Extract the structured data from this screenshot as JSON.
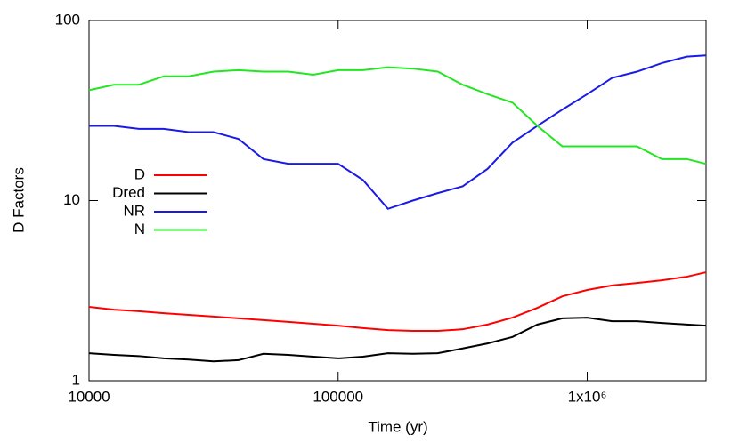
{
  "chart_data": {
    "type": "line",
    "x_label": "Time (yr)",
    "y_label": "D Factors",
    "xscale": "log",
    "yscale": "log",
    "xlim": [
      10000,
      3000000
    ],
    "ylim": [
      1,
      100
    ],
    "xticks": [
      10000,
      100000,
      {
        "value": 1000000,
        "label": "1x10⁶"
      }
    ],
    "yticks": [
      1,
      10,
      100
    ],
    "legend": "left",
    "x": [
      10000,
      12589,
      15849,
      19953,
      25119,
      31623,
      39811,
      50119,
      63096,
      79433,
      100000,
      125893,
      158489,
      199526,
      251189,
      316228,
      398107,
      501187,
      630957,
      794328,
      1000000,
      1258925,
      1584893,
      1995262,
      2511886,
      3000000
    ],
    "series": [
      {
        "name": "D",
        "color": "#ff0000",
        "values": [
          2.57,
          2.48,
          2.43,
          2.37,
          2.32,
          2.27,
          2.22,
          2.17,
          2.12,
          2.07,
          2.02,
          1.96,
          1.91,
          1.89,
          1.89,
          1.93,
          2.05,
          2.24,
          2.54,
          2.94,
          3.19,
          3.38,
          3.49,
          3.61,
          3.78,
          4.0
        ]
      },
      {
        "name": "Dred",
        "color": "#000000",
        "values": [
          1.42,
          1.39,
          1.37,
          1.33,
          1.31,
          1.28,
          1.3,
          1.41,
          1.39,
          1.36,
          1.33,
          1.36,
          1.42,
          1.41,
          1.42,
          1.51,
          1.61,
          1.75,
          2.05,
          2.22,
          2.24,
          2.14,
          2.14,
          2.09,
          2.05,
          2.02
        ]
      },
      {
        "name": "NR",
        "color": "#1a1ae6",
        "values": [
          26,
          26,
          25,
          25,
          24,
          24,
          22,
          17,
          16,
          16,
          16,
          13,
          9,
          10,
          11,
          12,
          15,
          21,
          26,
          32,
          39,
          48,
          52,
          58,
          63,
          64
        ]
      },
      {
        "name": "N",
        "color": "#22e622",
        "values": [
          41,
          44,
          44,
          49,
          49,
          52,
          53,
          52,
          52,
          50,
          53,
          53,
          55,
          54,
          52,
          44,
          39,
          35,
          26,
          20,
          20,
          20,
          20,
          17,
          17,
          16
        ]
      }
    ]
  }
}
